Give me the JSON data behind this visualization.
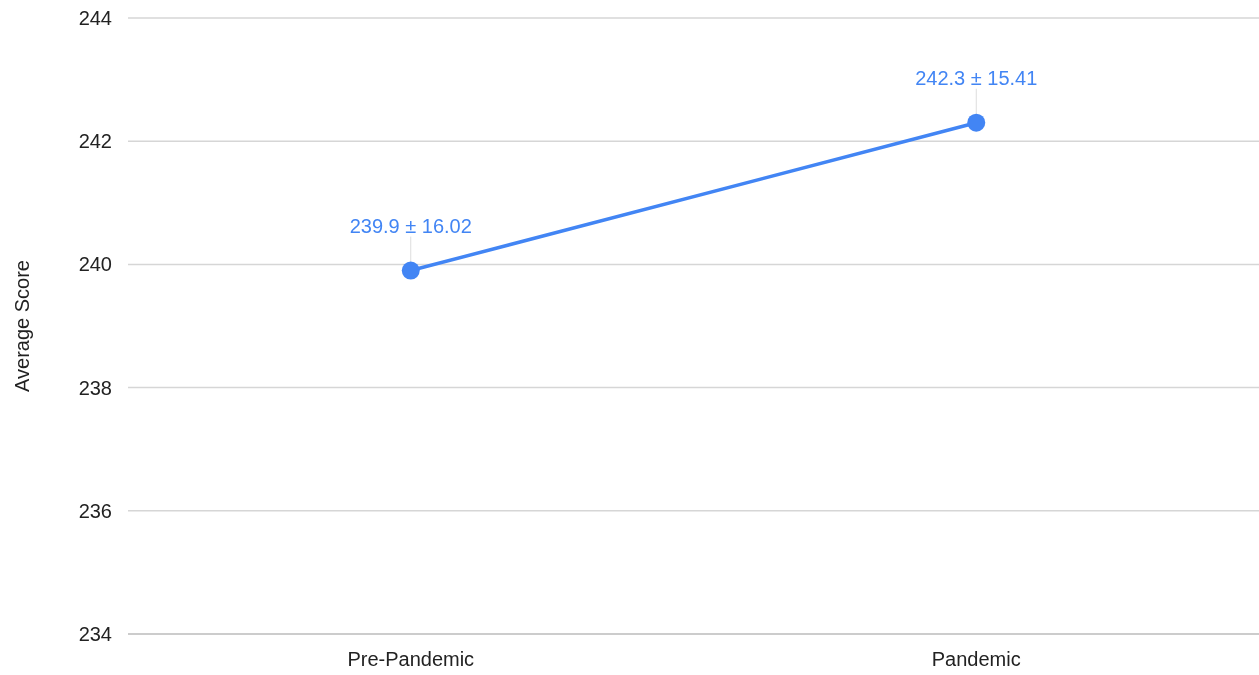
{
  "chart_data": {
    "type": "line",
    "ylabel": "Average Score",
    "categories": [
      "Pre-Pandemic",
      "Pandemic"
    ],
    "series": [
      {
        "color": "#4285f4",
        "values": [
          239.9,
          242.3
        ],
        "value_labels": [
          "239.9 ± 16.02",
          "242.3 ± 15.41"
        ]
      }
    ],
    "ylim": [
      234,
      244
    ],
    "yticks": [
      234,
      236,
      238,
      240,
      242,
      244
    ],
    "grid": "y",
    "marker": "circle",
    "line_style": "solid"
  }
}
